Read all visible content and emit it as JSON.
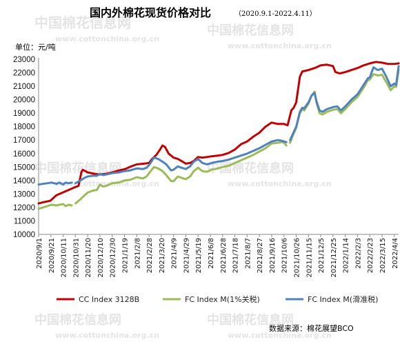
{
  "watermark": {
    "brand": "中国棉花信息网",
    "url": "www.cottonchina.org.cn"
  },
  "chart_data": {
    "type": "line",
    "title": "国内外棉花现货价格对比",
    "subtitle": "（2020.9.1-2022.4.11）",
    "unit_label": "单位：元/吨",
    "source": "数据来源：棉花展望BCO",
    "ylim": [
      10000,
      23000
    ],
    "yticks": [
      "10000",
      "11000",
      "12000",
      "13000",
      "14000",
      "15000",
      "16000",
      "17000",
      "18000",
      "19000",
      "20000",
      "21000",
      "22000",
      "23000"
    ],
    "xticks": [
      "2020/9/1",
      "2020/9/21",
      "2020/10/11",
      "2020/10/31",
      "2020/11/20",
      "2020/12/10",
      "2020/12/30",
      "2021/1/19",
      "2021/2/8",
      "2021/2/28",
      "2021/3/20",
      "2021/4/9",
      "2021/4/29",
      "2021/5/19",
      "2021/6/8",
      "2021/6/28",
      "2021/7/18",
      "2021/8/7",
      "2021/8/27",
      "2021/9/16",
      "2021/10/6",
      "2021/10/26",
      "2021/11/15",
      "2021/12/5",
      "2021/12/25",
      "2022/1/14",
      "2022/2/3",
      "2022/2/23",
      "2022/3/15",
      "2022/4/4"
    ],
    "x_start": "2020/9/1",
    "x_end": "2022/4/11",
    "grid": false,
    "legend_position": "bottom",
    "series": [
      {
        "name": "CC Index 3128B",
        "color": "#c00000",
        "points": [
          [
            "2020/9/1",
            12300
          ],
          [
            "2020/9/10",
            12400
          ],
          [
            "2020/9/20",
            12500
          ],
          [
            "2020/9/30",
            12900
          ],
          [
            "2020/10/10",
            13100
          ],
          [
            "2020/10/20",
            13300
          ],
          [
            "2020/10/30",
            13500
          ],
          [
            "2020/11/5",
            13600
          ],
          [
            "2020/11/10",
            14650
          ],
          [
            "2020/11/12",
            14800
          ],
          [
            "2020/11/20",
            14600
          ],
          [
            "2020/12/1",
            14500
          ],
          [
            "2020/12/10",
            14450
          ],
          [
            "2020/12/20",
            14500
          ],
          [
            "2020/12/30",
            14600
          ],
          [
            "2021/1/10",
            14750
          ],
          [
            "2021/1/20",
            14850
          ],
          [
            "2021/1/30",
            15050
          ],
          [
            "2021/2/8",
            15200
          ],
          [
            "2021/2/20",
            15250
          ],
          [
            "2021/2/28",
            15300
          ],
          [
            "2021/3/5",
            15600
          ],
          [
            "2021/3/12",
            15900
          ],
          [
            "2021/3/18",
            16300
          ],
          [
            "2021/3/22",
            16600
          ],
          [
            "2021/3/26",
            16500
          ],
          [
            "2021/4/1",
            16000
          ],
          [
            "2021/4/9",
            15700
          ],
          [
            "2021/4/16",
            15600
          ],
          [
            "2021/4/22",
            15450
          ],
          [
            "2021/4/29",
            15250
          ],
          [
            "2021/5/6",
            15300
          ],
          [
            "2021/5/12",
            15450
          ],
          [
            "2021/5/19",
            15750
          ],
          [
            "2021/5/26",
            15700
          ],
          [
            "2021/6/3",
            15750
          ],
          [
            "2021/6/10",
            15800
          ],
          [
            "2021/6/20",
            15850
          ],
          [
            "2021/6/28",
            15900
          ],
          [
            "2021/7/8",
            16050
          ],
          [
            "2021/7/18",
            16300
          ],
          [
            "2021/7/28",
            16700
          ],
          [
            "2021/8/7",
            16900
          ],
          [
            "2021/8/17",
            17250
          ],
          [
            "2021/8/27",
            17550
          ],
          [
            "2021/9/6",
            18000
          ],
          [
            "2021/9/16",
            18300
          ],
          [
            "2021/9/26",
            18200
          ],
          [
            "2021/10/6",
            18200
          ],
          [
            "2021/10/12",
            18100
          ],
          [
            "2021/10/18",
            19200
          ],
          [
            "2021/10/22",
            19400
          ],
          [
            "2021/10/26",
            19800
          ],
          [
            "2021/11/1",
            21700
          ],
          [
            "2021/11/5",
            22100
          ],
          [
            "2021/11/15",
            22200
          ],
          [
            "2021/11/25",
            22350
          ],
          [
            "2021/12/5",
            22550
          ],
          [
            "2021/12/15",
            22600
          ],
          [
            "2021/12/25",
            22500
          ],
          [
            "2021/12/29",
            22050
          ],
          [
            "2022/1/5",
            21950
          ],
          [
            "2022/1/14",
            22050
          ],
          [
            "2022/1/24",
            22200
          ],
          [
            "2022/2/3",
            22350
          ],
          [
            "2022/2/13",
            22550
          ],
          [
            "2022/2/23",
            22700
          ],
          [
            "2022/3/5",
            22800
          ],
          [
            "2022/3/15",
            22750
          ],
          [
            "2022/3/25",
            22650
          ],
          [
            "2022/4/4",
            22650
          ],
          [
            "2022/4/11",
            22700
          ]
        ]
      },
      {
        "name": "FC Index M(1%关税)",
        "color": "#9bbb59",
        "points": [
          [
            "2020/9/1",
            11900
          ],
          [
            "2020/9/8",
            12000
          ],
          [
            "2020/9/15",
            12100
          ],
          [
            "2020/9/22",
            12200
          ],
          [
            "2020/9/30",
            12150
          ],
          [
            "2020/10/5",
            12200
          ],
          [
            "2020/10/11",
            12250
          ],
          [
            "2020/10/15",
            12100
          ],
          [
            "2020/10/20",
            12200
          ],
          [
            "2020/10/25",
            12150
          ],
          null,
          [
            "2020/10/31",
            12300
          ],
          [
            "2020/11/8",
            12600
          ],
          [
            "2020/11/15",
            12900
          ],
          [
            "2020/11/20",
            13100
          ],
          [
            "2020/11/28",
            13250
          ],
          [
            "2020/12/5",
            13300
          ],
          [
            "2020/12/10",
            13700
          ],
          [
            "2020/12/15",
            13550
          ],
          [
            "2020/12/20",
            13600
          ],
          [
            "2020/12/30",
            13800
          ],
          [
            "2021/1/10",
            13850
          ],
          [
            "2021/1/19",
            14000
          ],
          [
            "2021/1/28",
            14050
          ],
          [
            "2021/2/8",
            14250
          ],
          [
            "2021/2/18",
            14150
          ],
          [
            "2021/2/24",
            14300
          ],
          [
            "2021/3/1",
            14600
          ],
          [
            "2021/3/8",
            15000
          ],
          [
            "2021/3/15",
            14900
          ],
          [
            "2021/3/22",
            14700
          ],
          [
            "2021/3/28",
            14400
          ],
          [
            "2021/4/5",
            13950
          ],
          [
            "2021/4/9",
            13950
          ],
          [
            "2021/4/16",
            14300
          ],
          [
            "2021/4/22",
            14200
          ],
          [
            "2021/4/29",
            14100
          ],
          [
            "2021/5/6",
            14300
          ],
          [
            "2021/5/12",
            14700
          ],
          [
            "2021/5/19",
            14950
          ],
          [
            "2021/5/26",
            14700
          ],
          [
            "2021/6/3",
            14650
          ],
          [
            "2021/6/10",
            14800
          ],
          [
            "2021/6/20",
            14900
          ],
          [
            "2021/6/28",
            15000
          ],
          [
            "2021/7/8",
            15100
          ],
          [
            "2021/7/18",
            15300
          ],
          [
            "2021/7/28",
            15500
          ],
          [
            "2021/8/7",
            15700
          ],
          [
            "2021/8/17",
            15900
          ],
          [
            "2021/8/27",
            16150
          ],
          [
            "2021/9/6",
            16400
          ],
          [
            "2021/9/16",
            16750
          ],
          [
            "2021/9/26",
            16800
          ],
          [
            "2021/10/3",
            16850
          ],
          [
            "2021/10/6",
            16800
          ],
          [
            "2021/10/10",
            16600
          ],
          null,
          [
            "2021/10/16",
            16800
          ],
          [
            "2021/10/22",
            17500
          ],
          [
            "2021/10/26",
            17900
          ],
          [
            "2021/11/1",
            19000
          ],
          [
            "2021/11/5",
            19300
          ],
          [
            "2021/11/8",
            19200
          ],
          [
            "2021/11/15",
            19700
          ],
          [
            "2021/11/20",
            20300
          ],
          [
            "2021/11/25",
            20600
          ],
          [
            "2021/11/28",
            19800
          ],
          [
            "2021/12/3",
            19000
          ],
          [
            "2021/12/8",
            18900
          ],
          [
            "2021/12/15",
            19100
          ],
          [
            "2021/12/22",
            19200
          ],
          [
            "2021/12/25",
            19250
          ],
          [
            "2022/1/1",
            19300
          ],
          [
            "2022/1/7",
            19000
          ],
          [
            "2022/1/14",
            19300
          ],
          [
            "2022/1/24",
            19800
          ],
          [
            "2022/2/3",
            20200
          ],
          [
            "2022/2/13",
            20900
          ],
          [
            "2022/2/20",
            21450
          ],
          [
            "2022/2/23",
            21500
          ],
          [
            "2022/3/1",
            21900
          ],
          [
            "2022/3/8",
            21800
          ],
          [
            "2022/3/15",
            21850
          ],
          [
            "2022/3/22",
            21300
          ],
          [
            "2022/3/29",
            20700
          ],
          [
            "2022/4/4",
            21000
          ],
          [
            "2022/4/7",
            20950
          ],
          [
            "2022/4/11",
            22200
          ]
        ]
      },
      {
        "name": "FC Index M(滑准税)",
        "color": "#4f81bd",
        "points": [
          [
            "2020/9/1",
            13700
          ],
          [
            "2020/9/8",
            13750
          ],
          [
            "2020/9/15",
            13800
          ],
          [
            "2020/9/22",
            13850
          ],
          [
            "2020/9/30",
            13750
          ],
          [
            "2020/10/5",
            13850
          ],
          [
            "2020/10/11",
            13700
          ],
          [
            "2020/10/15",
            13850
          ],
          [
            "2020/10/20",
            13800
          ],
          [
            "2020/10/25",
            13850
          ],
          null,
          [
            "2020/10/31",
            13800
          ],
          [
            "2020/11/8",
            14000
          ],
          [
            "2020/11/15",
            14200
          ],
          [
            "2020/11/20",
            14300
          ],
          [
            "2020/11/28",
            14350
          ],
          [
            "2020/12/5",
            14350
          ],
          [
            "2020/12/10",
            14500
          ],
          [
            "2020/12/15",
            14400
          ],
          [
            "2020/12/20",
            14450
          ],
          [
            "2020/12/30",
            14550
          ],
          [
            "2021/1/10",
            14600
          ],
          [
            "2021/1/19",
            14700
          ],
          [
            "2021/1/28",
            14750
          ],
          [
            "2021/2/8",
            14900
          ],
          [
            "2021/2/18",
            14850
          ],
          [
            "2021/2/24",
            14950
          ],
          [
            "2021/3/1",
            15200
          ],
          [
            "2021/3/8",
            15700
          ],
          [
            "2021/3/15",
            15600
          ],
          [
            "2021/3/22",
            15400
          ],
          [
            "2021/3/28",
            15200
          ],
          [
            "2021/4/5",
            14750
          ],
          [
            "2021/4/9",
            14800
          ],
          [
            "2021/4/16",
            15050
          ],
          [
            "2021/4/22",
            14950
          ],
          [
            "2021/4/29",
            14850
          ],
          [
            "2021/5/6",
            15050
          ],
          [
            "2021/5/12",
            15400
          ],
          [
            "2021/5/19",
            15600
          ],
          [
            "2021/5/26",
            15300
          ],
          [
            "2021/6/3",
            15200
          ],
          [
            "2021/6/10",
            15300
          ],
          [
            "2021/6/20",
            15400
          ],
          [
            "2021/6/28",
            15450
          ],
          [
            "2021/7/8",
            15550
          ],
          [
            "2021/7/18",
            15700
          ],
          [
            "2021/7/28",
            15850
          ],
          [
            "2021/8/7",
            16000
          ],
          [
            "2021/8/17",
            16200
          ],
          [
            "2021/8/27",
            16400
          ],
          [
            "2021/9/6",
            16650
          ],
          [
            "2021/9/16",
            16900
          ],
          [
            "2021/9/26",
            17000
          ],
          [
            "2021/10/3",
            16950
          ],
          [
            "2021/10/6",
            16900
          ],
          [
            "2021/10/10",
            16850
          ],
          null,
          [
            "2021/10/16",
            17000
          ],
          [
            "2021/10/22",
            17600
          ],
          [
            "2021/10/26",
            18000
          ],
          [
            "2021/11/1",
            19100
          ],
          [
            "2021/11/5",
            19400
          ],
          [
            "2021/11/8",
            19350
          ],
          [
            "2021/11/15",
            19800
          ],
          [
            "2021/11/20",
            20300
          ],
          [
            "2021/11/25",
            20500
          ],
          [
            "2021/11/28",
            19900
          ],
          [
            "2021/12/3",
            19200
          ],
          [
            "2021/12/8",
            19100
          ],
          [
            "2021/12/15",
            19300
          ],
          [
            "2021/12/22",
            19400
          ],
          [
            "2021/12/25",
            19450
          ],
          [
            "2022/1/1",
            19500
          ],
          [
            "2022/1/7",
            19200
          ],
          [
            "2022/1/14",
            19500
          ],
          [
            "2022/1/24",
            20000
          ],
          [
            "2022/2/3",
            20400
          ],
          [
            "2022/2/13",
            21100
          ],
          [
            "2022/2/20",
            21600
          ],
          [
            "2022/2/23",
            21650
          ],
          [
            "2022/3/1",
            22400
          ],
          [
            "2022/3/8",
            22200
          ],
          [
            "2022/3/15",
            22300
          ],
          [
            "2022/3/22",
            21700
          ],
          [
            "2022/3/29",
            21000
          ],
          [
            "2022/4/4",
            21200
          ],
          [
            "2022/4/7",
            21100
          ],
          [
            "2022/4/11",
            22500
          ]
        ]
      }
    ]
  }
}
